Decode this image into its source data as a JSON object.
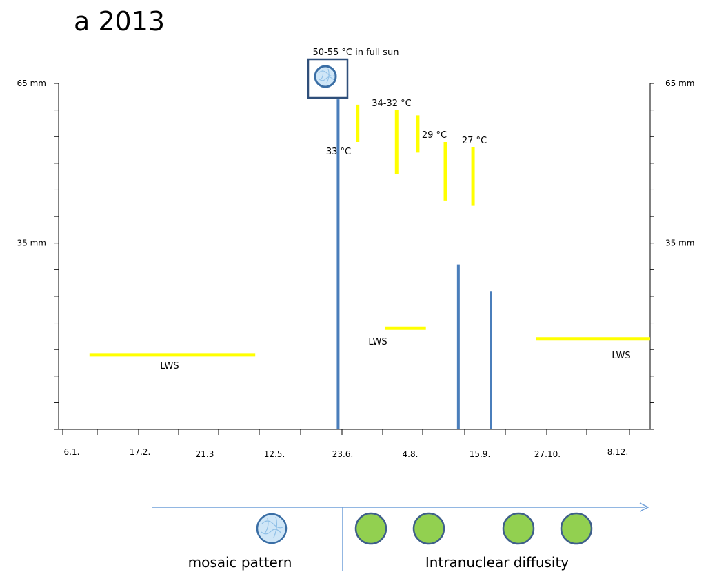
{
  "title": "a 2013",
  "chart_data": {
    "type": "bar",
    "title": "a 2013",
    "x_tick_labels": [
      "6.1.",
      "17.2.",
      "21.3",
      "12.5.",
      "23.6.",
      "4.8.",
      "15.9.",
      "27.10.",
      "8.12."
    ],
    "y_ticks": [
      {
        "value": 0,
        "label": ""
      },
      {
        "value": 35,
        "label": "35 mm"
      },
      {
        "value": 65,
        "label": "65 mm"
      }
    ],
    "y_range": [
      0,
      65
    ],
    "y_minor_count": 13,
    "x_range_day": [
      1,
      365
    ],
    "rainfall_mm": [
      {
        "day": 173,
        "value": 62
      },
      {
        "day": 247,
        "value": 31
      },
      {
        "day": 267,
        "value": 26
      }
    ],
    "temperature_events": [
      {
        "label": "50-55 °C in full  sun",
        "day": 173,
        "y_top": 65,
        "y_bottom": 65,
        "marker": "mosaic-box"
      },
      {
        "label": "33 °C",
        "day": 185,
        "y_top": 61,
        "y_bottom": 54
      },
      {
        "label": "34-32 °C",
        "day": 209,
        "y_top": 60,
        "y_bottom": 48
      },
      {
        "label": "",
        "day": 222,
        "y_top": 59,
        "y_bottom": 52
      },
      {
        "label": "29 °C",
        "day": 239,
        "y_top": 54,
        "y_bottom": 43
      },
      {
        "label": "27 °C",
        "day": 256,
        "y_top": 53,
        "y_bottom": 42
      }
    ],
    "lws_periods": [
      {
        "label": "LWS",
        "start_day": 20,
        "end_day": 122,
        "y": 14
      },
      {
        "label": "LWS",
        "start_day": 202,
        "end_day": 227,
        "y": 19
      },
      {
        "label": "LWS",
        "start_day": 295,
        "end_day": 365,
        "y": 17
      }
    ],
    "colors": {
      "rain": "#4a7ebb",
      "temperature": "#ffff00",
      "lws": "#ffff00",
      "axis": "#000000"
    }
  },
  "legend": {
    "mosaic_label": "mosaic pattern",
    "diffusity_label": "Intranuclear diffusity",
    "mosaic_count": 1,
    "diffusity_count": 4,
    "mosaic_fill": "#cfe6f7",
    "mosaic_stroke": "#3a6ea5",
    "diffusity_fill": "#92d050",
    "diffusity_stroke": "#3e5f8a",
    "arrow_color": "#6f9fd8"
  }
}
